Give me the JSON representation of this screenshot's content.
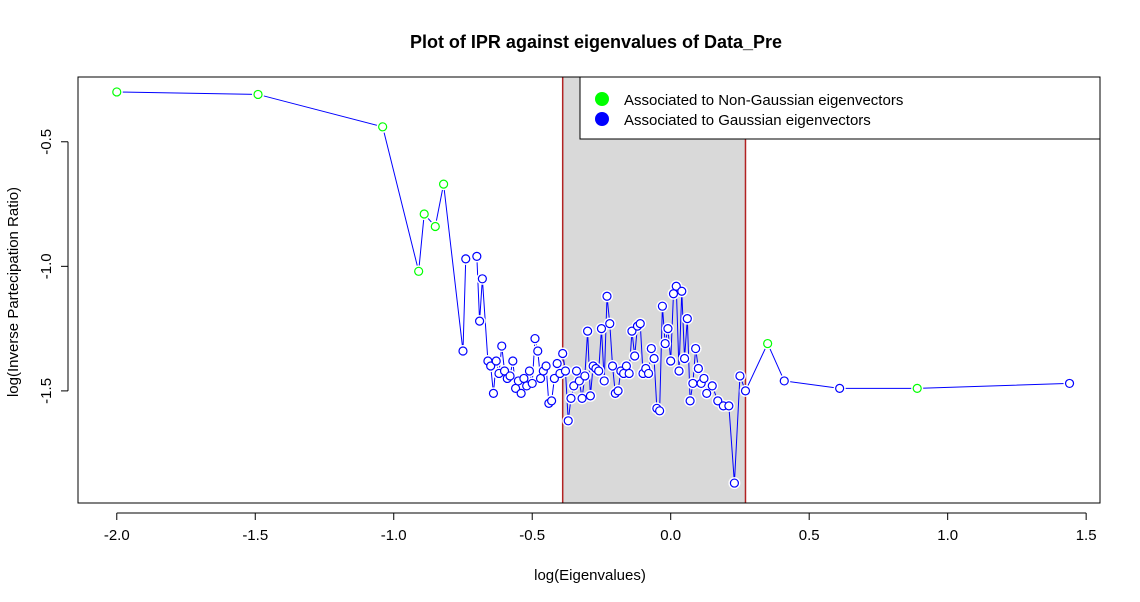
{
  "chart_data": {
    "type": "scatter",
    "title": "Plot of IPR against eigenvalues of  Data_Pre",
    "xlabel": "log(Eigenvalues)",
    "ylabel": "log(Inverse Partecipation Ratio)",
    "xlim": [
      -2.14,
      1.55
    ],
    "ylim": [
      -1.95,
      -0.24
    ],
    "xticks": [
      -2.0,
      -1.5,
      -1.0,
      -0.5,
      0.0,
      0.5,
      1.0,
      1.5
    ],
    "xtick_labels": [
      "-2.0",
      "-1.5",
      "-1.0",
      "-0.5",
      "0.0",
      "0.5",
      "1.0",
      "1.5"
    ],
    "yticks": [
      -0.5,
      -1.0,
      -1.5
    ],
    "ytick_labels": [
      "-0.5",
      "-1.0",
      "-1.5"
    ],
    "shaded_band": {
      "x": [
        -0.39,
        0.27
      ],
      "fill": "#d9d9d9",
      "edge_color": "#b22222"
    },
    "legend": {
      "position": "top-right",
      "entries": [
        {
          "label": "Associated to Non-Gaussian eigenvectors",
          "color": "#00ff00"
        },
        {
          "label": "Associated to Gaussian eigenvectors",
          "color": "#0000ff"
        }
      ]
    },
    "line_color": "#0000ff",
    "series": [
      {
        "name": "Associated to Non-Gaussian eigenvectors",
        "color": "#00ff00",
        "x": [
          -2.0,
          -1.49,
          -1.04,
          -0.91,
          -0.89,
          -0.85,
          -0.82,
          0.35,
          0.89
        ],
        "y": [
          -0.3,
          -0.31,
          -0.44,
          -1.02,
          -0.79,
          -0.84,
          -0.67,
          -1.31,
          -1.49
        ]
      },
      {
        "name": "Associated to Gaussian eigenvectors",
        "color": "#0000ff",
        "x": [
          -0.75,
          -0.74,
          -0.7,
          -0.69,
          -0.68,
          -0.66,
          -0.65,
          -0.64,
          -0.63,
          -0.62,
          -0.61,
          -0.6,
          -0.59,
          -0.58,
          -0.57,
          -0.56,
          -0.55,
          -0.54,
          -0.53,
          -0.52,
          -0.51,
          -0.5,
          -0.49,
          -0.48,
          -0.47,
          -0.46,
          -0.45,
          -0.44,
          -0.43,
          -0.42,
          -0.41,
          -0.4,
          -0.39,
          -0.38,
          -0.37,
          -0.36,
          -0.35,
          -0.34,
          -0.33,
          -0.32,
          -0.31,
          -0.3,
          -0.29,
          -0.28,
          -0.27,
          -0.26,
          -0.25,
          -0.24,
          -0.23,
          -0.22,
          -0.21,
          -0.2,
          -0.19,
          -0.18,
          -0.17,
          -0.16,
          -0.15,
          -0.14,
          -0.13,
          -0.12,
          -0.11,
          -0.1,
          -0.09,
          -0.08,
          -0.07,
          -0.06,
          -0.05,
          -0.04,
          -0.03,
          -0.02,
          -0.01,
          0.0,
          0.01,
          0.02,
          0.03,
          0.04,
          0.05,
          0.06,
          0.07,
          0.08,
          0.09,
          0.1,
          0.11,
          0.12,
          0.13,
          0.15,
          0.17,
          0.19,
          0.21,
          0.23,
          0.25,
          0.27,
          0.41,
          0.61,
          1.44
        ],
        "y": [
          -1.34,
          -0.97,
          -0.96,
          -1.22,
          -1.05,
          -1.38,
          -1.4,
          -1.51,
          -1.38,
          -1.43,
          -1.32,
          -1.42,
          -1.45,
          -1.44,
          -1.38,
          -1.49,
          -1.46,
          -1.51,
          -1.45,
          -1.48,
          -1.42,
          -1.47,
          -1.29,
          -1.34,
          -1.45,
          -1.42,
          -1.4,
          -1.55,
          -1.54,
          -1.45,
          -1.39,
          -1.43,
          -1.35,
          -1.42,
          -1.62,
          -1.53,
          -1.48,
          -1.42,
          -1.46,
          -1.53,
          -1.44,
          -1.26,
          -1.52,
          -1.4,
          -1.41,
          -1.42,
          -1.25,
          -1.46,
          -1.12,
          -1.23,
          -1.4,
          -1.51,
          -1.5,
          -1.42,
          -1.43,
          -1.4,
          -1.43,
          -1.26,
          -1.36,
          -1.24,
          -1.23,
          -1.43,
          -1.41,
          -1.43,
          -1.33,
          -1.37,
          -1.57,
          -1.58,
          -1.16,
          -1.31,
          -1.25,
          -1.38,
          -1.11,
          -1.08,
          -1.42,
          -1.1,
          -1.37,
          -1.21,
          -1.54,
          -1.47,
          -1.33,
          -1.41,
          -1.47,
          -1.45,
          -1.51,
          -1.48,
          -1.54,
          -1.56,
          -1.56,
          -1.87,
          -1.44,
          -1.5,
          -1.46,
          -1.49,
          -1.47
        ]
      }
    ]
  }
}
